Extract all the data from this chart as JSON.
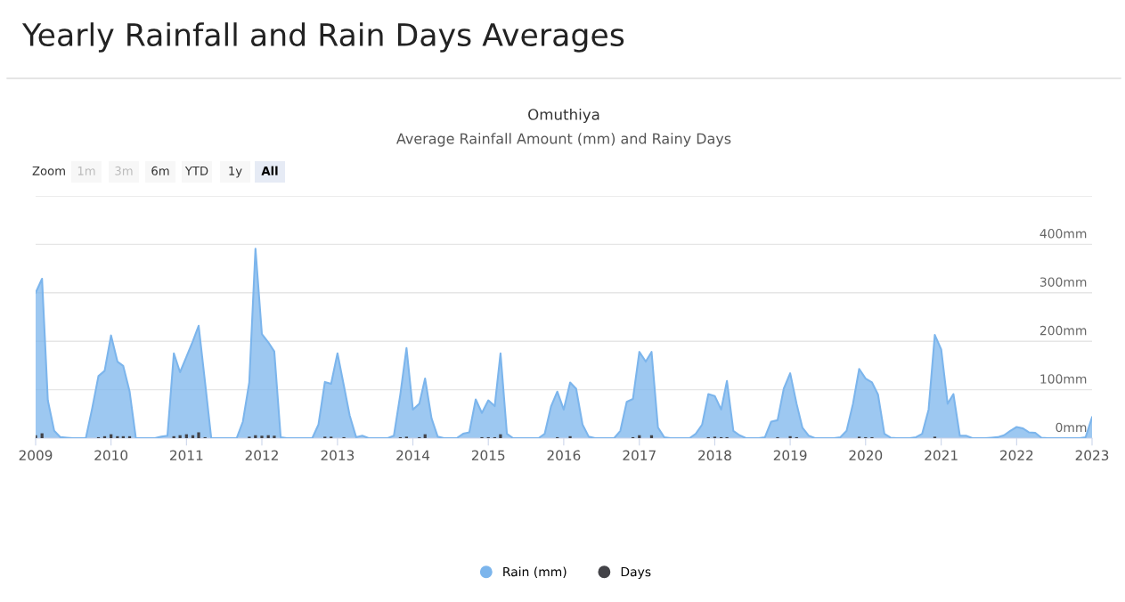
{
  "chart_data": {
    "type": "area",
    "title": "Yearly Rainfall and Rain Days Averages",
    "subtitle": "Omuthiya",
    "annotations": [
      "Average Rainfall Amount (mm) and Rainy Days",
      "Zoom",
      "1m",
      "3m",
      "6m",
      "YTD",
      "1y",
      "All"
    ],
    "xlim": [
      "2009-01",
      "2023-01"
    ],
    "xticks": [
      "2009",
      "2010",
      "2011",
      "2012",
      "2013",
      "2014",
      "2015",
      "2016",
      "2017",
      "2018",
      "2019",
      "2020",
      "2021",
      "2022",
      "2023"
    ],
    "ylim": [
      0,
      500
    ],
    "yticks": [
      {
        "value": 0,
        "label": "0mm"
      },
      {
        "value": 100,
        "label": "100mm"
      },
      {
        "value": 200,
        "label": "200mm"
      },
      {
        "value": 300,
        "label": "300mm"
      },
      {
        "value": 400,
        "label": "400mm"
      },
      {
        "value": 500,
        "label": null
      }
    ],
    "grid": "y",
    "legend": "bottom",
    "series": [
      {
        "name": "Rain (mm)",
        "color": "#7cb5ec",
        "x": [
          "2009-01",
          "2009-02",
          "2009-03",
          "2009-04",
          "2009-05",
          "2009-06",
          "2009-07",
          "2009-08",
          "2009-09",
          "2009-10",
          "2009-11",
          "2009-12",
          "2010-01",
          "2010-02",
          "2010-03",
          "2010-04",
          "2010-05",
          "2010-06",
          "2010-07",
          "2010-08",
          "2010-09",
          "2010-10",
          "2010-11",
          "2010-12",
          "2011-01",
          "2011-02",
          "2011-03",
          "2011-04",
          "2011-05",
          "2011-06",
          "2011-07",
          "2011-08",
          "2011-09",
          "2011-10",
          "2011-11",
          "2011-12",
          "2012-01",
          "2012-02",
          "2012-03",
          "2012-04",
          "2012-05",
          "2012-06",
          "2012-07",
          "2012-08",
          "2012-09",
          "2012-10",
          "2012-11",
          "2012-12",
          "2013-01",
          "2013-02",
          "2013-03",
          "2013-04",
          "2013-05",
          "2013-06",
          "2013-07",
          "2013-08",
          "2013-09",
          "2013-10",
          "2013-11",
          "2013-12",
          "2014-01",
          "2014-02",
          "2014-03",
          "2014-04",
          "2014-05",
          "2014-06",
          "2014-07",
          "2014-08",
          "2014-09",
          "2014-10",
          "2014-11",
          "2014-12",
          "2015-01",
          "2015-02",
          "2015-03",
          "2015-04",
          "2015-05",
          "2015-06",
          "2015-07",
          "2015-08",
          "2015-09",
          "2015-10",
          "2015-11",
          "2015-12",
          "2016-01",
          "2016-02",
          "2016-03",
          "2016-04",
          "2016-05",
          "2016-06",
          "2016-07",
          "2016-08",
          "2016-09",
          "2016-10",
          "2016-11",
          "2016-12",
          "2017-01",
          "2017-02",
          "2017-03",
          "2017-04",
          "2017-05",
          "2017-06",
          "2017-07",
          "2017-08",
          "2017-09",
          "2017-10",
          "2017-11",
          "2017-12",
          "2018-01",
          "2018-02",
          "2018-03",
          "2018-04",
          "2018-05",
          "2018-06",
          "2018-07",
          "2018-08",
          "2018-09",
          "2018-10",
          "2018-11",
          "2018-12",
          "2019-01",
          "2019-02",
          "2019-03",
          "2019-04",
          "2019-05",
          "2019-06",
          "2019-07",
          "2019-08",
          "2019-09",
          "2019-10",
          "2019-11",
          "2019-12",
          "2020-01",
          "2020-02",
          "2020-03",
          "2020-04",
          "2020-05",
          "2020-06",
          "2020-07",
          "2020-08",
          "2020-09",
          "2020-10",
          "2020-11",
          "2020-12",
          "2021-01",
          "2021-02",
          "2021-03",
          "2021-04",
          "2021-05",
          "2021-06",
          "2021-07",
          "2021-08",
          "2021-09",
          "2021-10",
          "2021-11",
          "2021-12",
          "2022-01",
          "2022-02",
          "2022-03",
          "2022-04",
          "2022-05",
          "2022-06",
          "2022-07",
          "2022-08",
          "2022-09",
          "2022-10",
          "2022-11",
          "2022-12",
          "2023-01"
        ],
        "values": [
          300,
          329,
          78,
          15,
          2,
          1,
          0,
          0,
          0,
          60,
          128,
          139,
          212,
          158,
          149,
          96,
          0,
          0,
          0,
          0,
          3,
          5,
          175,
          136,
          168,
          200,
          232,
          115,
          0,
          0,
          0,
          0,
          0,
          34,
          115,
          391,
          215,
          198,
          179,
          2,
          0,
          0,
          0,
          0,
          0,
          28,
          116,
          112,
          175,
          108,
          47,
          2,
          5,
          0,
          0,
          0,
          0,
          5,
          90,
          186,
          59,
          71,
          123,
          41,
          3,
          0,
          0,
          0,
          9,
          12,
          80,
          52,
          78,
          66,
          175,
          9,
          0,
          0,
          0,
          0,
          0,
          9,
          66,
          96,
          59,
          115,
          102,
          28,
          3,
          0,
          0,
          0,
          0,
          15,
          75,
          81,
          178,
          158,
          178,
          22,
          2,
          0,
          0,
          0,
          0,
          9,
          28,
          91,
          87,
          59,
          118,
          15,
          6,
          0,
          0,
          0,
          2,
          34,
          37,
          102,
          134,
          71,
          22,
          5,
          0,
          0,
          0,
          0,
          2,
          15,
          71,
          143,
          123,
          115,
          90,
          9,
          1,
          0,
          0,
          0,
          2,
          9,
          59,
          213,
          183,
          71,
          91,
          5,
          5,
          0,
          0,
          0,
          1,
          2,
          6,
          15,
          23,
          20,
          12,
          11,
          1,
          0,
          0,
          0,
          0,
          0,
          0,
          2,
          43
        ]
      },
      {
        "name": "Days",
        "type": "bar",
        "color": "#434348",
        "x": [
          "2009-01",
          "2009-02",
          "2009-11",
          "2009-12",
          "2010-01",
          "2010-02",
          "2010-03",
          "2010-04",
          "2010-11",
          "2010-12",
          "2011-01",
          "2011-02",
          "2011-03",
          "2011-04",
          "2011-11",
          "2011-12",
          "2012-01",
          "2012-02",
          "2012-03",
          "2012-11",
          "2012-12",
          "2013-02",
          "2013-11",
          "2013-12",
          "2014-02",
          "2014-03",
          "2014-12",
          "2015-01",
          "2015-02",
          "2015-03",
          "2015-12",
          "2016-02",
          "2016-12",
          "2017-01",
          "2017-03",
          "2017-12",
          "2018-01",
          "2018-02",
          "2018-03",
          "2018-11",
          "2019-01",
          "2019-02",
          "2019-12",
          "2020-01",
          "2020-02",
          "2020-12"
        ],
        "values": [
          6,
          10,
          2,
          4,
          8,
          4,
          4,
          4,
          4,
          6,
          8,
          6,
          12,
          2,
          3,
          6,
          5,
          6,
          5,
          3,
          3,
          2,
          2,
          3,
          2,
          8,
          2,
          2,
          2,
          8,
          2,
          4,
          2,
          6,
          6,
          2,
          3,
          2,
          2,
          2,
          4,
          2,
          3,
          2,
          2,
          3
        ]
      }
    ]
  }
}
